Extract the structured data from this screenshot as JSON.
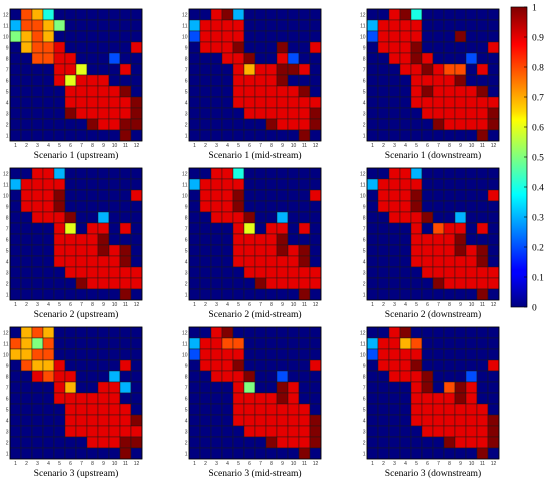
{
  "chart_data": {
    "type": "heatmap",
    "grid_size": 12,
    "x_ticks": [
      "1",
      "2",
      "3",
      "4",
      "5",
      "6",
      "7",
      "8",
      "9",
      "10",
      "11",
      "12"
    ],
    "y_ticks": [
      "1",
      "2",
      "3",
      "4",
      "5",
      "6",
      "7",
      "8",
      "9",
      "10",
      "11",
      "12"
    ],
    "colorbar": {
      "colormap": "jet",
      "range": [
        0,
        1
      ],
      "ticks": [
        "0",
        "0.1",
        "0.2",
        "0.3",
        "0.4",
        "0.5",
        "0.6",
        "0.7",
        "0.8",
        "0.9",
        "1"
      ]
    },
    "note": "row strings are listed top row (y=12) to bottom row (y=1); each char is x=1..12; digit d = value d/10, 'T' = 1.0",
    "panels": [
      {
        "caption": "Scenario 1 (upstream)",
        "rows": [
          "087400000000",
          "388750000000",
          "578700000000",
          "078890000009",
          "008899000200",
          "000099600090",
          "000096999000",
          "0000099999T0",
          "00000999999T",
          "00000T99999T",
          "0000000T99TT",
          "0000000000T0"
        ]
      },
      {
        "caption": "Scenario 1 (mid-stream)",
        "rows": [
          "009T30000000",
          "399990000000",
          "299990000000",
          "0999T000T009",
          "00099T009200",
          "00009799TT90",
          "00009999T000",
          "0000999999T0",
          "000099999999",
          "00000999999T",
          "0000000T999T",
          "0000000000T0"
        ]
      },
      {
        "caption": "Scenario 1 (downstream)",
        "rows": [
          "009T40000000",
          "399990000000",
          "29999000T000",
          "0999T0000009",
          "0099T9000200",
          "00099T988090",
          "00009999T000",
          "00009T9999T0",
          "000099999999",
          "00000999999T",
          "000000T9999T",
          "0000000000T0"
        ]
      },
      {
        "caption": "Scenario 2 (upstream)",
        "rows": [
          "009930000000",
          "399990000000",
          "0999T0000009",
          "0999T0000000",
          "00999T003000",
          "000096099090",
          "00009999T000",
          "00009999T9T0",
          "0000999999T0",
          "000009999999",
          "000000T99999",
          "0000000000T0"
        ]
      },
      {
        "caption": "Scenario 2 (mid-stream)",
        "rows": [
          "009940000000",
          "399990000000",
          "0999T0000009",
          "0999T0000000",
          "00999T003000",
          "000096099090",
          "00009999T000",
          "00009999T9T0",
          "0000999999T0",
          "000009999999",
          "000000T99999",
          "0000000000T0"
        ]
      },
      {
        "caption": "Scenario 2 (downstream)",
        "rows": [
          "009930000000",
          "399990000000",
          "0999T0000009",
          "0999T0000000",
          "00999T003000",
          "000090899090",
          "00009999T000",
          "00009999T9T0",
          "0000999999T0",
          "000009999999",
          "000000T99999",
          "0000000000T0"
        ]
      },
      {
        "caption": "Scenario 3 (upstream)",
        "rows": [
          "078700000000",
          "875800000000",
          "778800000000",
          "087790000090",
          "009899000300",
          "000097009930",
          "000099999900",
          "000009999990",
          "00000999999T",
          "000009999999",
          "0000000999TT",
          "0000000000T0"
        ]
      },
      {
        "caption": "Scenario 3 (mid-stream)",
        "rows": [
          "009T00000000",
          "399880000000",
          "299990000000",
          "0999T0000009",
          "00999T002000",
          "00009500T900",
          "00009999T900",
          "000099999990",
          "00009999999T",
          "00000999999T",
          "0000000T999T",
          "0000000000T0"
        ]
      },
      {
        "caption": "Scenario 3 (downstream)",
        "rows": [
          "009T00000000",
          "399780000000",
          "299990000000",
          "0999T0000009",
          "00999T000200",
          "00009T08T900",
          "00009999T900",
          "000099999990",
          "00009999999T",
          "00000999999T",
          "0000000T999T",
          "0000000000T0"
        ]
      }
    ]
  }
}
